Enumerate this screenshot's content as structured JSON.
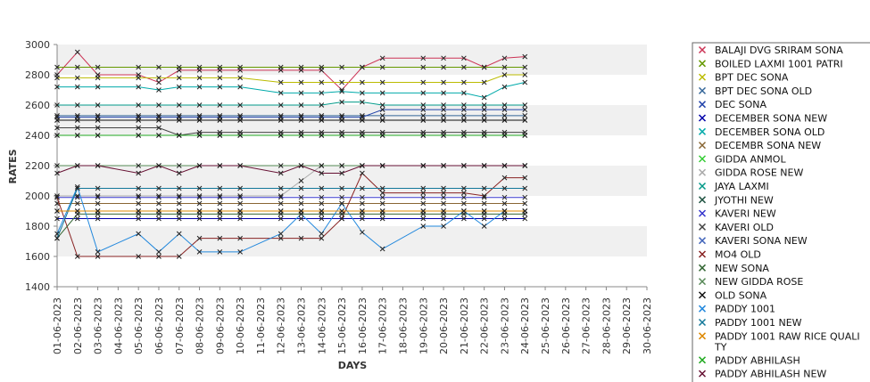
{
  "chart_data": {
    "type": "line",
    "title": "",
    "xlabel": "DAYS",
    "ylabel": "RATES",
    "ylim": [
      1400,
      3000
    ],
    "yticks": [
      1400,
      1600,
      1800,
      2000,
      2200,
      2400,
      2600,
      2800,
      3000
    ],
    "grid": "horizontal bands",
    "legend_position": "right",
    "categories": [
      "01-06-2023",
      "02-06-2023",
      "03-06-2023",
      "04-06-2023",
      "05-06-2023",
      "06-06-2023",
      "07-06-2023",
      "08-06-2023",
      "09-06-2023",
      "10-06-2023",
      "11-06-2023",
      "12-06-2023",
      "13-06-2023",
      "14-06-2023",
      "15-06-2023",
      "16-06-2023",
      "17-06-2023",
      "18-06-2023",
      "19-06-2023",
      "20-06-2023",
      "21-06-2023",
      "22-06-2023",
      "23-06-2023",
      "24-06-2023",
      "25-06-2023",
      "26-06-2023",
      "27-06-2023",
      "28-06-2023",
      "29-06-2023",
      "30-06-2023"
    ],
    "series": [
      {
        "name": "BALAJI DVG SRIRAM SONA",
        "color": "#cc3355",
        "values": [
          2800,
          2950,
          2800,
          null,
          2800,
          2750,
          2830,
          2830,
          2830,
          2830,
          null,
          2830,
          2830,
          2830,
          2700,
          2850,
          2910,
          null,
          2910,
          2910,
          2910,
          2850,
          2910,
          2920,
          null,
          null,
          null,
          null,
          null,
          null
        ]
      },
      {
        "name": "BOILED LAXMI 1001 PATRI",
        "color": "#669900",
        "values": [
          2850,
          2850,
          2850,
          null,
          2850,
          2850,
          2850,
          2850,
          2850,
          2850,
          null,
          2850,
          2850,
          2850,
          2850,
          2850,
          2850,
          null,
          2850,
          2850,
          2850,
          2850,
          2850,
          2850,
          null,
          null,
          null,
          null,
          null,
          null
        ]
      },
      {
        "name": "BPT DEC SONA",
        "color": "#bbbb00",
        "values": [
          2780,
          2780,
          2780,
          null,
          2780,
          2780,
          2780,
          2780,
          2780,
          2780,
          null,
          2750,
          2750,
          2750,
          2750,
          2750,
          2750,
          null,
          2750,
          2750,
          2750,
          2750,
          2800,
          2800,
          null,
          null,
          null,
          null,
          null,
          null
        ]
      },
      {
        "name": "BPT DEC SONA OLD",
        "color": "#336699",
        "values": [
          2530,
          2530,
          2530,
          null,
          2530,
          2530,
          2530,
          2530,
          2530,
          2530,
          null,
          2530,
          2530,
          2530,
          2530,
          2530,
          2530,
          null,
          2530,
          2530,
          2530,
          2530,
          2530,
          2530,
          null,
          null,
          null,
          null,
          null,
          null
        ]
      },
      {
        "name": "DEC SONA",
        "color": "#2244aa",
        "values": [
          2520,
          2520,
          2520,
          null,
          2520,
          2520,
          2520,
          2520,
          2520,
          2520,
          null,
          2520,
          2520,
          2520,
          2520,
          2520,
          2570,
          null,
          2570,
          2570,
          2570,
          2570,
          2570,
          2570,
          null,
          null,
          null,
          null,
          null,
          null
        ]
      },
      {
        "name": "DECEMBER SONA NEW",
        "color": "#0000aa",
        "values": [
          1850,
          1850,
          1850,
          null,
          1850,
          1850,
          1850,
          1850,
          1850,
          1850,
          null,
          1850,
          1850,
          1850,
          1850,
          1850,
          1850,
          null,
          1850,
          1850,
          1850,
          1850,
          1850,
          1850,
          null,
          null,
          null,
          null,
          null,
          null
        ]
      },
      {
        "name": "DECEMBER SONA OLD",
        "color": "#00aaaa",
        "values": [
          2720,
          2720,
          2720,
          null,
          2720,
          2700,
          2720,
          2720,
          2720,
          2720,
          null,
          2680,
          2680,
          2680,
          2690,
          2680,
          2680,
          null,
          2680,
          2680,
          2680,
          2650,
          2720,
          2750,
          null,
          null,
          null,
          null,
          null,
          null
        ]
      },
      {
        "name": "DECEMBR SONA NEW",
        "color": "#886633",
        "values": [
          1950,
          1950,
          1950,
          null,
          1950,
          1950,
          1950,
          1950,
          1950,
          1950,
          null,
          1950,
          1950,
          1950,
          1950,
          1950,
          1950,
          null,
          1950,
          1950,
          1950,
          1950,
          1950,
          1950,
          null,
          null,
          null,
          null,
          null,
          null
        ]
      },
      {
        "name": "GIDDA ANMOL",
        "color": "#33cc33",
        "values": [
          2400,
          2400,
          2400,
          null,
          2400,
          2400,
          2400,
          2400,
          2400,
          2400,
          null,
          2400,
          2400,
          2400,
          2400,
          2400,
          2400,
          null,
          2400,
          2400,
          2400,
          2400,
          2400,
          2400,
          null,
          null,
          null,
          null,
          null,
          null
        ]
      },
      {
        "name": "GIDDA ROSE NEW",
        "color": "#aaaaaa",
        "values": [
          2000,
          2000,
          2000,
          null,
          2000,
          2000,
          2000,
          2000,
          2000,
          2000,
          null,
          2000,
          2100,
          2200,
          2200,
          2200,
          2200,
          null,
          2200,
          2200,
          2200,
          2200,
          2200,
          2200,
          null,
          null,
          null,
          null,
          null,
          null
        ]
      },
      {
        "name": "JAYA LAXMI",
        "color": "#009988",
        "values": [
          2600,
          2600,
          2600,
          null,
          2600,
          2600,
          2600,
          2600,
          2600,
          2600,
          null,
          2600,
          2600,
          2600,
          2620,
          2620,
          2600,
          null,
          2600,
          2600,
          2600,
          2600,
          2600,
          2600,
          null,
          null,
          null,
          null,
          null,
          null
        ]
      },
      {
        "name": "JYOTHI NEW",
        "color": "#225544",
        "values": [
          2500,
          2500,
          2500,
          null,
          2500,
          2500,
          2500,
          2500,
          2500,
          2500,
          null,
          2500,
          2500,
          2500,
          2500,
          2500,
          2500,
          null,
          2500,
          2500,
          2500,
          2500,
          2500,
          2500,
          null,
          null,
          null,
          null,
          null,
          null
        ]
      },
      {
        "name": "KAVERI NEW",
        "color": "#3333cc",
        "values": [
          1990,
          1990,
          1990,
          null,
          1990,
          1990,
          1990,
          1990,
          1990,
          1990,
          null,
          1990,
          1990,
          1990,
          1990,
          1990,
          1990,
          null,
          1990,
          1990,
          1990,
          1990,
          1990,
          1990,
          null,
          null,
          null,
          null,
          null,
          null
        ]
      },
      {
        "name": "KAVERI OLD",
        "color": "#444444",
        "values": [
          2450,
          2450,
          2450,
          null,
          2450,
          2450,
          2400,
          2420,
          2420,
          2420,
          null,
          2420,
          2420,
          2420,
          2420,
          2420,
          2420,
          null,
          2420,
          2420,
          2420,
          2420,
          2420,
          2420,
          null,
          null,
          null,
          null,
          null,
          null
        ]
      },
      {
        "name": "KAVERI SONA NEW",
        "color": "#4466bb",
        "values": [
          1900,
          1900,
          1900,
          null,
          1900,
          1900,
          1900,
          1900,
          1900,
          1900,
          null,
          1900,
          1900,
          1900,
          1900,
          1900,
          1900,
          null,
          1900,
          1900,
          1900,
          1900,
          1900,
          1900,
          null,
          null,
          null,
          null,
          null,
          null
        ]
      },
      {
        "name": "MO4 OLD",
        "color": "#882222",
        "values": [
          1990,
          1600,
          1600,
          null,
          1600,
          1600,
          1600,
          1720,
          1720,
          1720,
          null,
          1720,
          1720,
          1720,
          1850,
          2150,
          2020,
          null,
          2020,
          2020,
          2020,
          2000,
          2120,
          2120,
          null,
          null,
          null,
          null,
          null,
          null
        ]
      },
      {
        "name": "NEW  SONA",
        "color": "#336633",
        "values": [
          1720,
          1880,
          1880,
          null,
          1880,
          1880,
          1880,
          1880,
          1880,
          1880,
          null,
          1880,
          1880,
          1880,
          1880,
          1880,
          1880,
          null,
          1880,
          1880,
          1880,
          1880,
          1880,
          1880,
          null,
          null,
          null,
          null,
          null,
          null
        ]
      },
      {
        "name": "NEW GIDDA ROSE",
        "color": "#558855",
        "values": [
          2200,
          2200,
          2200,
          null,
          2200,
          2200,
          2200,
          2200,
          2200,
          2200,
          null,
          2200,
          2200,
          2200,
          2200,
          2200,
          2200,
          null,
          2200,
          2200,
          2200,
          2200,
          2200,
          2200,
          null,
          null,
          null,
          null,
          null,
          null
        ]
      },
      {
        "name": "OLD SONA",
        "color": "#111111",
        "values": [
          2500,
          2500,
          2500,
          null,
          2500,
          2500,
          2500,
          2500,
          2500,
          2500,
          null,
          2500,
          2500,
          2500,
          2500,
          2500,
          2500,
          null,
          2500,
          2500,
          2500,
          2500,
          2500,
          2500,
          null,
          null,
          null,
          null,
          null,
          null
        ]
      },
      {
        "name": "PADDY 1001",
        "color": "#2288dd",
        "values": [
          1750,
          2060,
          1630,
          null,
          1750,
          1630,
          1750,
          1630,
          1630,
          1630,
          null,
          1750,
          1880,
          1750,
          1950,
          1760,
          1650,
          null,
          1800,
          1800,
          1900,
          1800,
          1900,
          1900,
          null,
          null,
          null,
          null,
          null,
          null
        ]
      },
      {
        "name": "PADDY 1001 NEW",
        "color": "#117799",
        "values": [
          1720,
          2050,
          2050,
          null,
          2050,
          2050,
          2050,
          2050,
          2050,
          2050,
          null,
          2050,
          2050,
          2050,
          2050,
          2050,
          2050,
          null,
          2050,
          2050,
          2050,
          2050,
          2050,
          2050,
          null,
          null,
          null,
          null,
          null,
          null
        ]
      },
      {
        "name": "PADDY 1001 RAW RICE QUALITY",
        "color": "#dd8800",
        "values": [
          1900,
          1900,
          1900,
          null,
          1900,
          1900,
          1900,
          1900,
          1900,
          1900,
          null,
          1900,
          1900,
          1900,
          1900,
          1900,
          1900,
          null,
          1900,
          1900,
          1900,
          1900,
          1900,
          1900,
          null,
          null,
          null,
          null,
          null,
          null
        ]
      },
      {
        "name": "PADDY ABHILASH",
        "color": "#22aa22",
        "values": [
          2400,
          2400,
          2400,
          null,
          2400,
          2400,
          2400,
          2400,
          2400,
          2400,
          null,
          2400,
          2400,
          2400,
          2400,
          2400,
          2400,
          null,
          2400,
          2400,
          2400,
          2400,
          2400,
          2400,
          null,
          null,
          null,
          null,
          null,
          null
        ]
      },
      {
        "name": "PADDY ABHILASH NEW",
        "color": "#661133",
        "values": [
          2150,
          2200,
          2200,
          null,
          2150,
          2200,
          2150,
          2200,
          2200,
          2200,
          null,
          2150,
          2200,
          2150,
          2150,
          2200,
          2200,
          null,
          2200,
          2200,
          2200,
          2200,
          2200,
          2200,
          null,
          null,
          null,
          null,
          null,
          null
        ]
      }
    ]
  }
}
